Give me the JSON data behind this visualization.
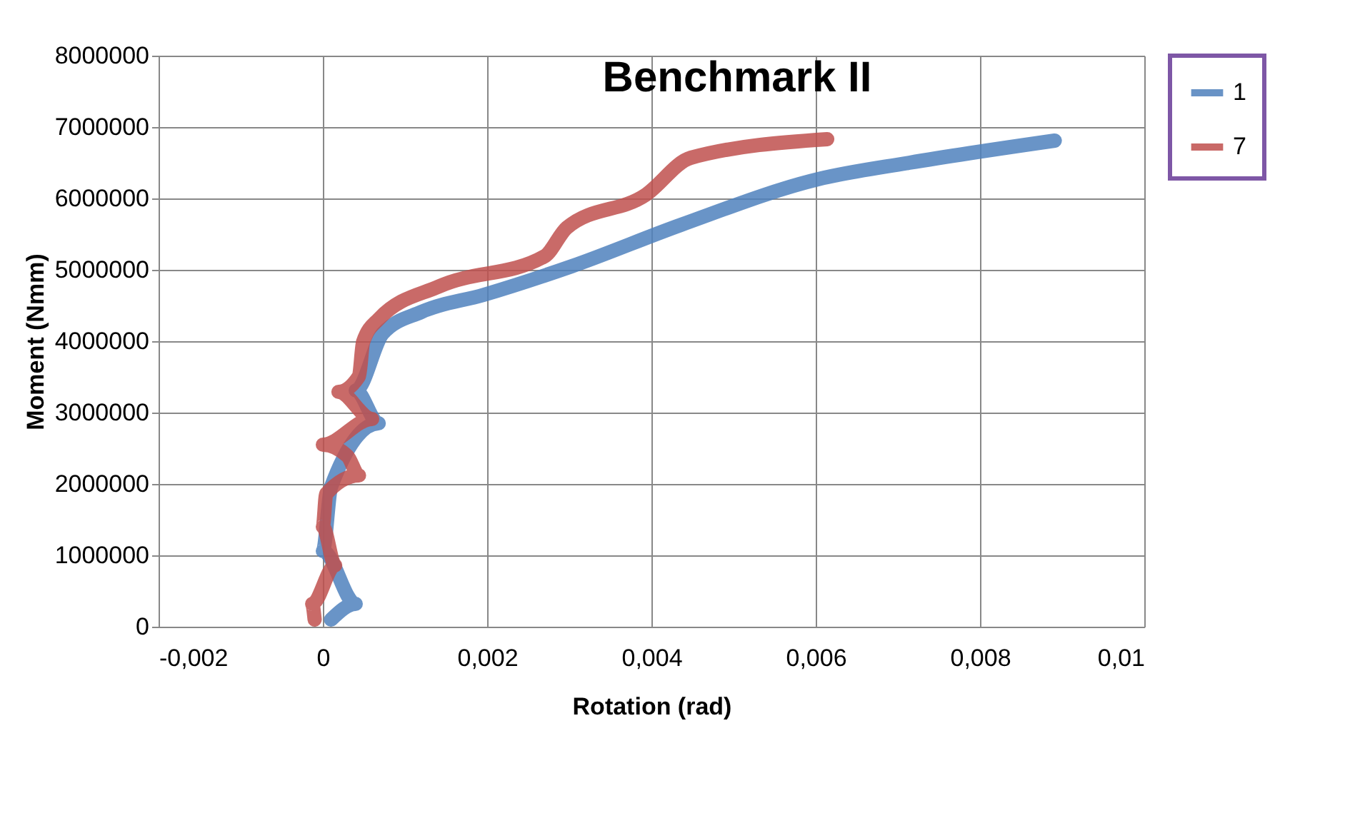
{
  "chart_data": {
    "type": "line",
    "title": "Benchmark II",
    "xlabel": "Rotation (rad)",
    "ylabel": "Moment (Nmm)",
    "xlim": [
      -0.002,
      0.01
    ],
    "xticks": [
      {
        "value": -0.002,
        "label": "-0,002"
      },
      0,
      {
        "value": 0.002,
        "label": "0,002"
      },
      {
        "value": 0.004,
        "label": "0,004"
      },
      {
        "value": 0.006,
        "label": "0,006"
      },
      {
        "value": 0.008,
        "label": "0,008"
      },
      {
        "value": 0.01,
        "label": "0,01"
      }
    ],
    "ylim": [
      0,
      8000000
    ],
    "yticks": [
      0,
      1000000,
      2000000,
      3000000,
      4000000,
      5000000,
      6000000,
      7000000,
      8000000
    ],
    "grid": true,
    "legend": "right",
    "marker": "none",
    "line_style": "solid",
    "series": [
      {
        "name": "1",
        "color": "#4f81bd",
        "x": [
          0.0001,
          0.0004,
          0.0,
          0.0001,
          0.00068,
          0.0004,
          0.00073,
          0.0012,
          0.00196,
          0.00303,
          0.00436,
          0.00603,
          0.00714,
          0.00891
        ],
        "values": [
          100000,
          320000,
          1060000,
          1960000,
          2850000,
          3310000,
          4110000,
          4410000,
          4650000,
          5050000,
          5630000,
          6270000,
          6500000,
          6810000
        ]
      },
      {
        "name": "7",
        "color": "#c0504d",
        "x": [
          -0.0001,
          -0.00013,
          0.00015,
          0.0,
          4e-05,
          0.00044,
          0.0003,
          0.0,
          0.0006,
          0.00019,
          0.00044,
          0.00049,
          0.00068,
          0.00142,
          0.0027,
          0.00297,
          0.00393,
          0.00448,
          0.00614
        ],
        "values": [
          100000,
          320000,
          860000,
          1400000,
          1860000,
          2120000,
          2390000,
          2550000,
          2910000,
          3290000,
          3510000,
          3990000,
          4310000,
          4770000,
          5190000,
          5590000,
          6050000,
          6570000,
          6830000
        ]
      }
    ]
  }
}
